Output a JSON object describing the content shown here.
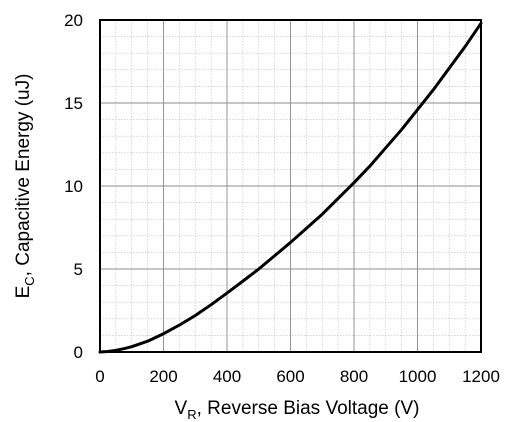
{
  "chart_data": {
    "type": "line",
    "xlabel": {
      "main": "V",
      "sub": "R",
      "rest": ", Reverse Bias Voltage (V)"
    },
    "ylabel": {
      "main": "E",
      "sub": "C",
      "rest": ", Capacitive Energy (uJ)"
    },
    "xlim": [
      0,
      1200
    ],
    "ylim": [
      0,
      20
    ],
    "x_ticks": [
      0,
      200,
      400,
      600,
      800,
      1000,
      1200
    ],
    "y_ticks": [
      0,
      5,
      10,
      15,
      20
    ],
    "grid": true,
    "minor_grid": {
      "x_step": 50,
      "y_step": 1
    },
    "series": [
      {
        "color": "#000000",
        "x": [
          0,
          25,
          50,
          75,
          100,
          150,
          200,
          250,
          300,
          350,
          400,
          450,
          500,
          550,
          600,
          650,
          700,
          750,
          800,
          850,
          900,
          950,
          1000,
          1050,
          1100,
          1150,
          1200
        ],
        "y": [
          0,
          0.03,
          0.1,
          0.2,
          0.32,
          0.65,
          1.1,
          1.62,
          2.2,
          2.85,
          3.55,
          4.27,
          5.0,
          5.8,
          6.6,
          7.45,
          8.3,
          9.25,
          10.2,
          11.2,
          12.3,
          13.4,
          14.6,
          15.8,
          17.1,
          18.4,
          19.8
        ]
      }
    ]
  }
}
